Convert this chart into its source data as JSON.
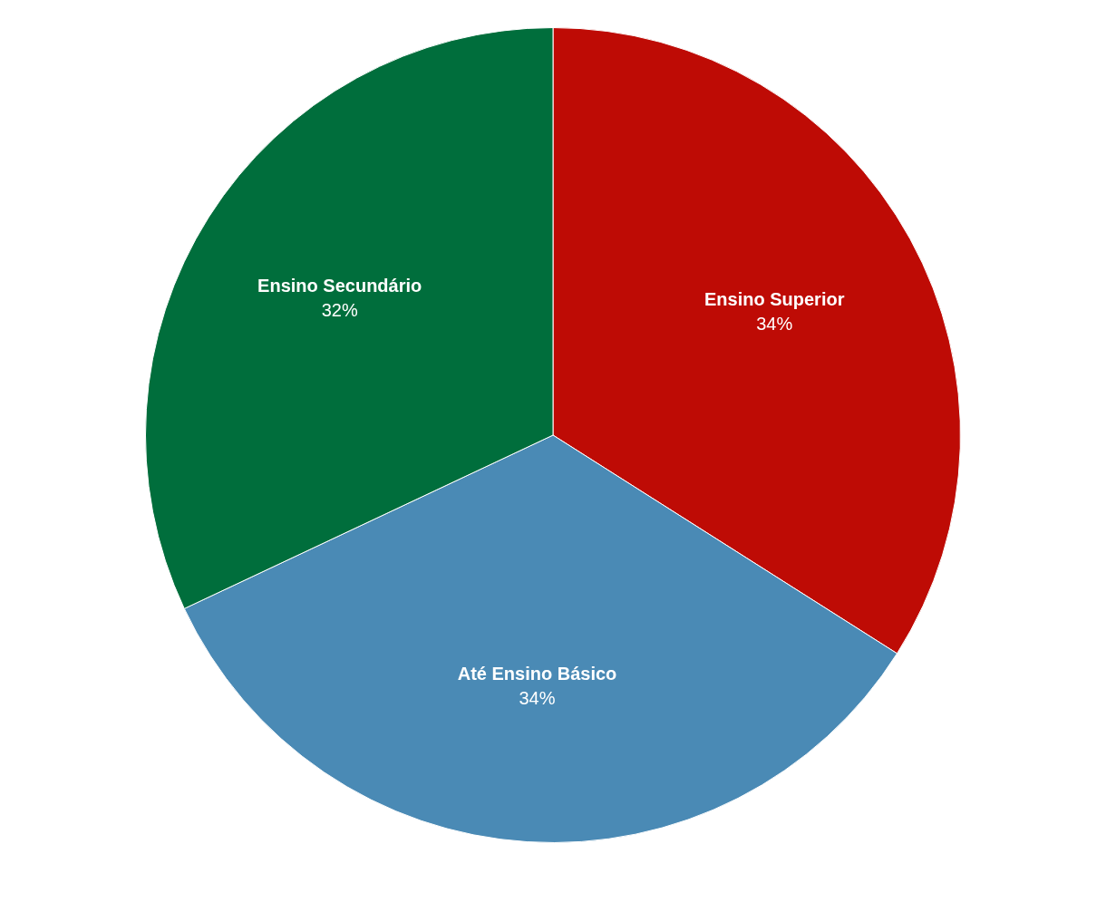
{
  "chart_data": {
    "type": "pie",
    "categories": [
      "Ensino Superior",
      "Até Ensino Básico",
      "Ensino Secundário"
    ],
    "values": [
      34,
      34,
      32
    ],
    "colors": [
      "#be0b05",
      "#4a8ab5",
      "#006e3c"
    ],
    "value_labels": [
      "34%",
      "34%",
      "32%"
    ],
    "legend": false
  }
}
